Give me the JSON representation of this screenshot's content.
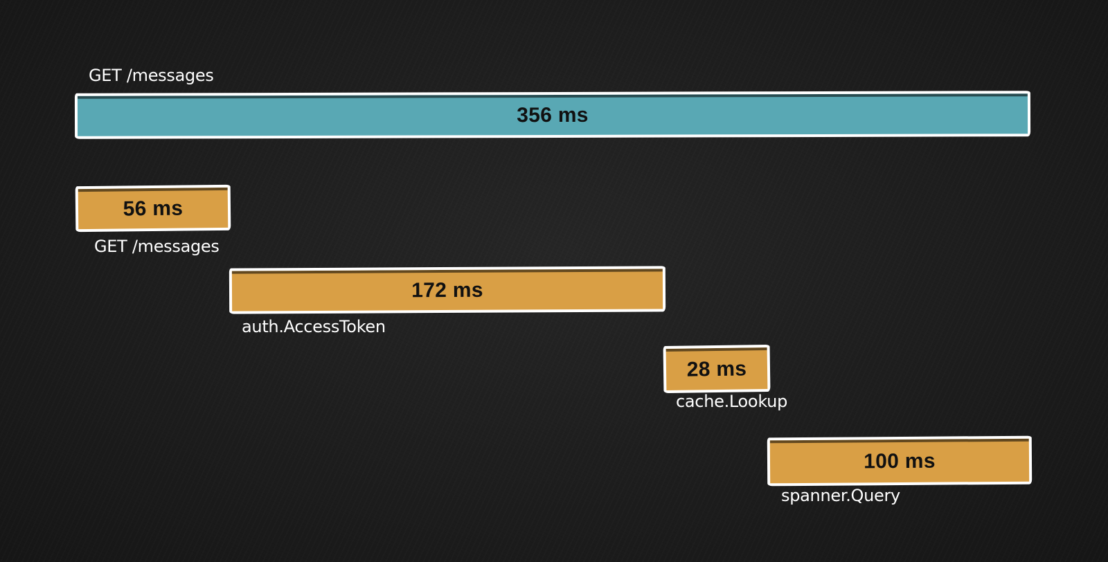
{
  "colors": {
    "background": "#1c1c1c",
    "root_span": "#59a8b4",
    "child_span": "#d99f45",
    "outline": "#ffffff"
  },
  "root": {
    "name": "GET /messages",
    "duration": "356 ms"
  },
  "spans": [
    {
      "name": "GET /messages",
      "duration": "56 ms"
    },
    {
      "name": "auth.AccessToken",
      "duration": "172 ms"
    },
    {
      "name": "cache.Lookup",
      "duration": "28 ms"
    },
    {
      "name": "spanner.Query",
      "duration": "100 ms"
    }
  ]
}
